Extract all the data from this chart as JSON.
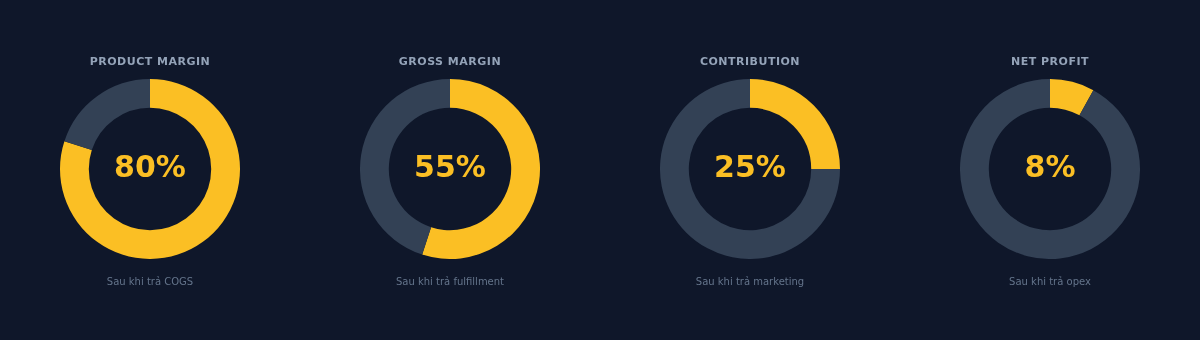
{
  "chart_data": [
    {
      "type": "donut",
      "title": "PRODUCT MARGIN",
      "categories": [
        null,
        null
      ],
      "values": [
        80,
        20
      ],
      "colors": [
        "#fbbf24",
        "#334155"
      ],
      "value_labels": [
        "80%",
        null
      ],
      "annotations": [
        "Sau khi trả COGS"
      ]
    },
    {
      "type": "donut",
      "title": "GROSS MARGIN",
      "categories": [
        null,
        null
      ],
      "values": [
        55,
        45
      ],
      "colors": [
        "#fbbf24",
        "#334155"
      ],
      "value_labels": [
        "55%",
        null
      ],
      "annotations": [
        "Sau khi trả fulfillment"
      ]
    },
    {
      "type": "donut",
      "title": "CONTRIBUTION",
      "categories": [
        null,
        null
      ],
      "values": [
        25,
        75
      ],
      "colors": [
        "#fbbf24",
        "#334155"
      ],
      "value_labels": [
        "25%",
        null
      ],
      "annotations": [
        "Sau khi trả marketing"
      ]
    },
    {
      "type": "donut",
      "title": "NET PROFIT",
      "categories": [
        null,
        null
      ],
      "values": [
        8,
        92
      ],
      "colors": [
        "#fbbf24",
        "#334155"
      ],
      "value_labels": [
        "8%",
        null
      ],
      "annotations": [
        "Sau khi trả opex"
      ]
    }
  ]
}
